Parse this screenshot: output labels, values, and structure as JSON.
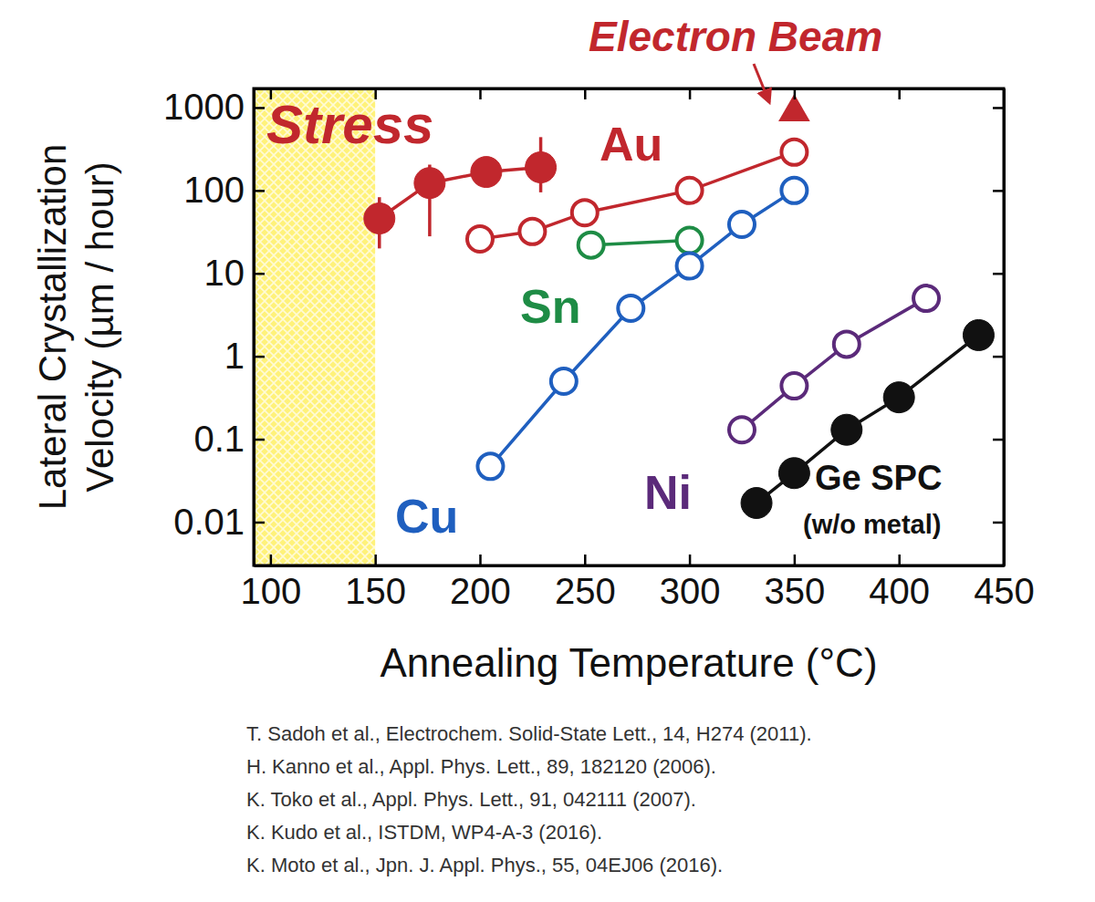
{
  "chart_data": {
    "type": "line",
    "x_label": "Annealing Temperature (°C)",
    "y_label": [
      "Lateral Crystallization",
      "Velocity (µm / hour)"
    ],
    "xlim": [
      92,
      450
    ],
    "ylim": [
      0.003,
      1700
    ],
    "xticks": [
      100,
      150,
      200,
      250,
      300,
      350,
      400,
      450
    ],
    "yticks": [
      0.01,
      0.1,
      1,
      10,
      100,
      1000
    ],
    "log": "y",
    "grid": false,
    "shaded_x": [
      92,
      150
    ],
    "series": [
      {
        "name": "Stress",
        "color": "#c1272d",
        "marker": "filled-circle",
        "line_style": "solid",
        "x": [
          152,
          176,
          203,
          229
        ],
        "values": [
          46,
          123,
          167,
          190
        ],
        "y_lower": [
          20,
          28,
          140,
          95
        ],
        "y_upper": [
          83,
          205,
          200,
          440
        ]
      },
      {
        "name": "Au",
        "color": "#c1272d",
        "marker": "open-circle",
        "line_style": "solid",
        "x": [
          200,
          225,
          250,
          300,
          350
        ],
        "values": [
          26,
          32,
          54,
          100,
          290
        ]
      },
      {
        "name": "Sn",
        "color": "#1e8c45",
        "marker": "open-circle",
        "line_style": "solid",
        "x": [
          253,
          300
        ],
        "values": [
          22,
          25
        ]
      },
      {
        "name": "Cu",
        "color": "#1f5fbf",
        "marker": "open-circle",
        "line_style": "solid",
        "x": [
          205,
          240,
          272,
          300,
          325,
          350
        ],
        "values": [
          0.047,
          0.5,
          3.8,
          12.3,
          39,
          100
        ]
      },
      {
        "name": "Ni",
        "color": "#5b2a7a",
        "marker": "open-circle",
        "line_style": "solid",
        "x": [
          325,
          350,
          375,
          413
        ],
        "values": [
          0.13,
          0.44,
          1.4,
          5.0
        ]
      },
      {
        "name": "Ge SPC",
        "color": "#111111",
        "marker": "filled-circle",
        "line_style": "solid",
        "x": [
          332,
          350,
          375,
          400,
          438
        ],
        "values": [
          0.017,
          0.039,
          0.13,
          0.32,
          1.8
        ]
      },
      {
        "name": "Electron Beam",
        "color": "#c1272d",
        "marker": "triangle",
        "line_style": "none",
        "x": [
          350
        ],
        "values": [
          880
        ]
      }
    ],
    "annotations": [
      "(w/o metal)"
    ]
  },
  "references": [
    "T. Sadoh et al., Electrochem. Solid-State Lett., 14, H274 (2011).",
    "H. Kanno et al., Appl. Phys. Lett., 89, 182120 (2006).",
    "K. Toko et al., Appl. Phys. Lett., 91, 042111 (2007).",
    "K. Kudo et al., ISTDM, WP4-A-3 (2016).",
    "K. Moto et al., Jpn. J. Appl. Phys., 55, 04EJ06 (2016)."
  ]
}
